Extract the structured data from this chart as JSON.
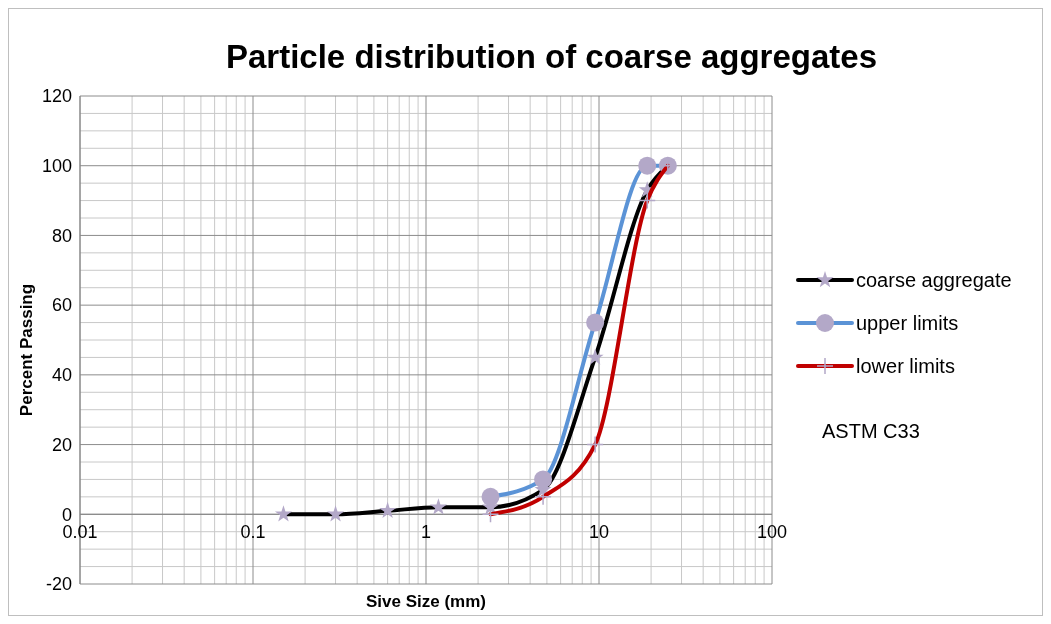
{
  "chart_data": {
    "type": "line",
    "title": "Particle distribution of coarse aggregates",
    "xlabel": "Sive Size (mm)",
    "ylabel": "Percent Passing",
    "log": "x",
    "xlim": [
      0.01,
      100
    ],
    "xticks": [
      0.01,
      0.1,
      1,
      10,
      100
    ],
    "ylim": [
      -20,
      120
    ],
    "yticks": [
      -20,
      0,
      20,
      40,
      60,
      80,
      100,
      120
    ],
    "grid": true,
    "legend": "right",
    "annotations": [
      "ASTM C33"
    ],
    "series": [
      {
        "name": "coarse aggregate",
        "color": "#000000",
        "marker": "star",
        "x": [
          0.15,
          0.3,
          0.6,
          1.18,
          2.36,
          4.75,
          9.5,
          19,
          25
        ],
        "values": [
          0,
          0,
          1,
          2,
          2,
          7,
          45,
          93,
          100
        ]
      },
      {
        "name": "upper limits",
        "color": "#5b93d6",
        "marker": "circle",
        "x": [
          2.36,
          4.75,
          9.5,
          19,
          25
        ],
        "values": [
          5,
          10,
          55,
          100,
          100
        ]
      },
      {
        "name": "lower limits",
        "color": "#c00000",
        "marker": "cross",
        "x": [
          2.36,
          4.75,
          9.5,
          19,
          25
        ],
        "values": [
          0,
          5,
          20,
          90,
          100
        ]
      }
    ]
  }
}
